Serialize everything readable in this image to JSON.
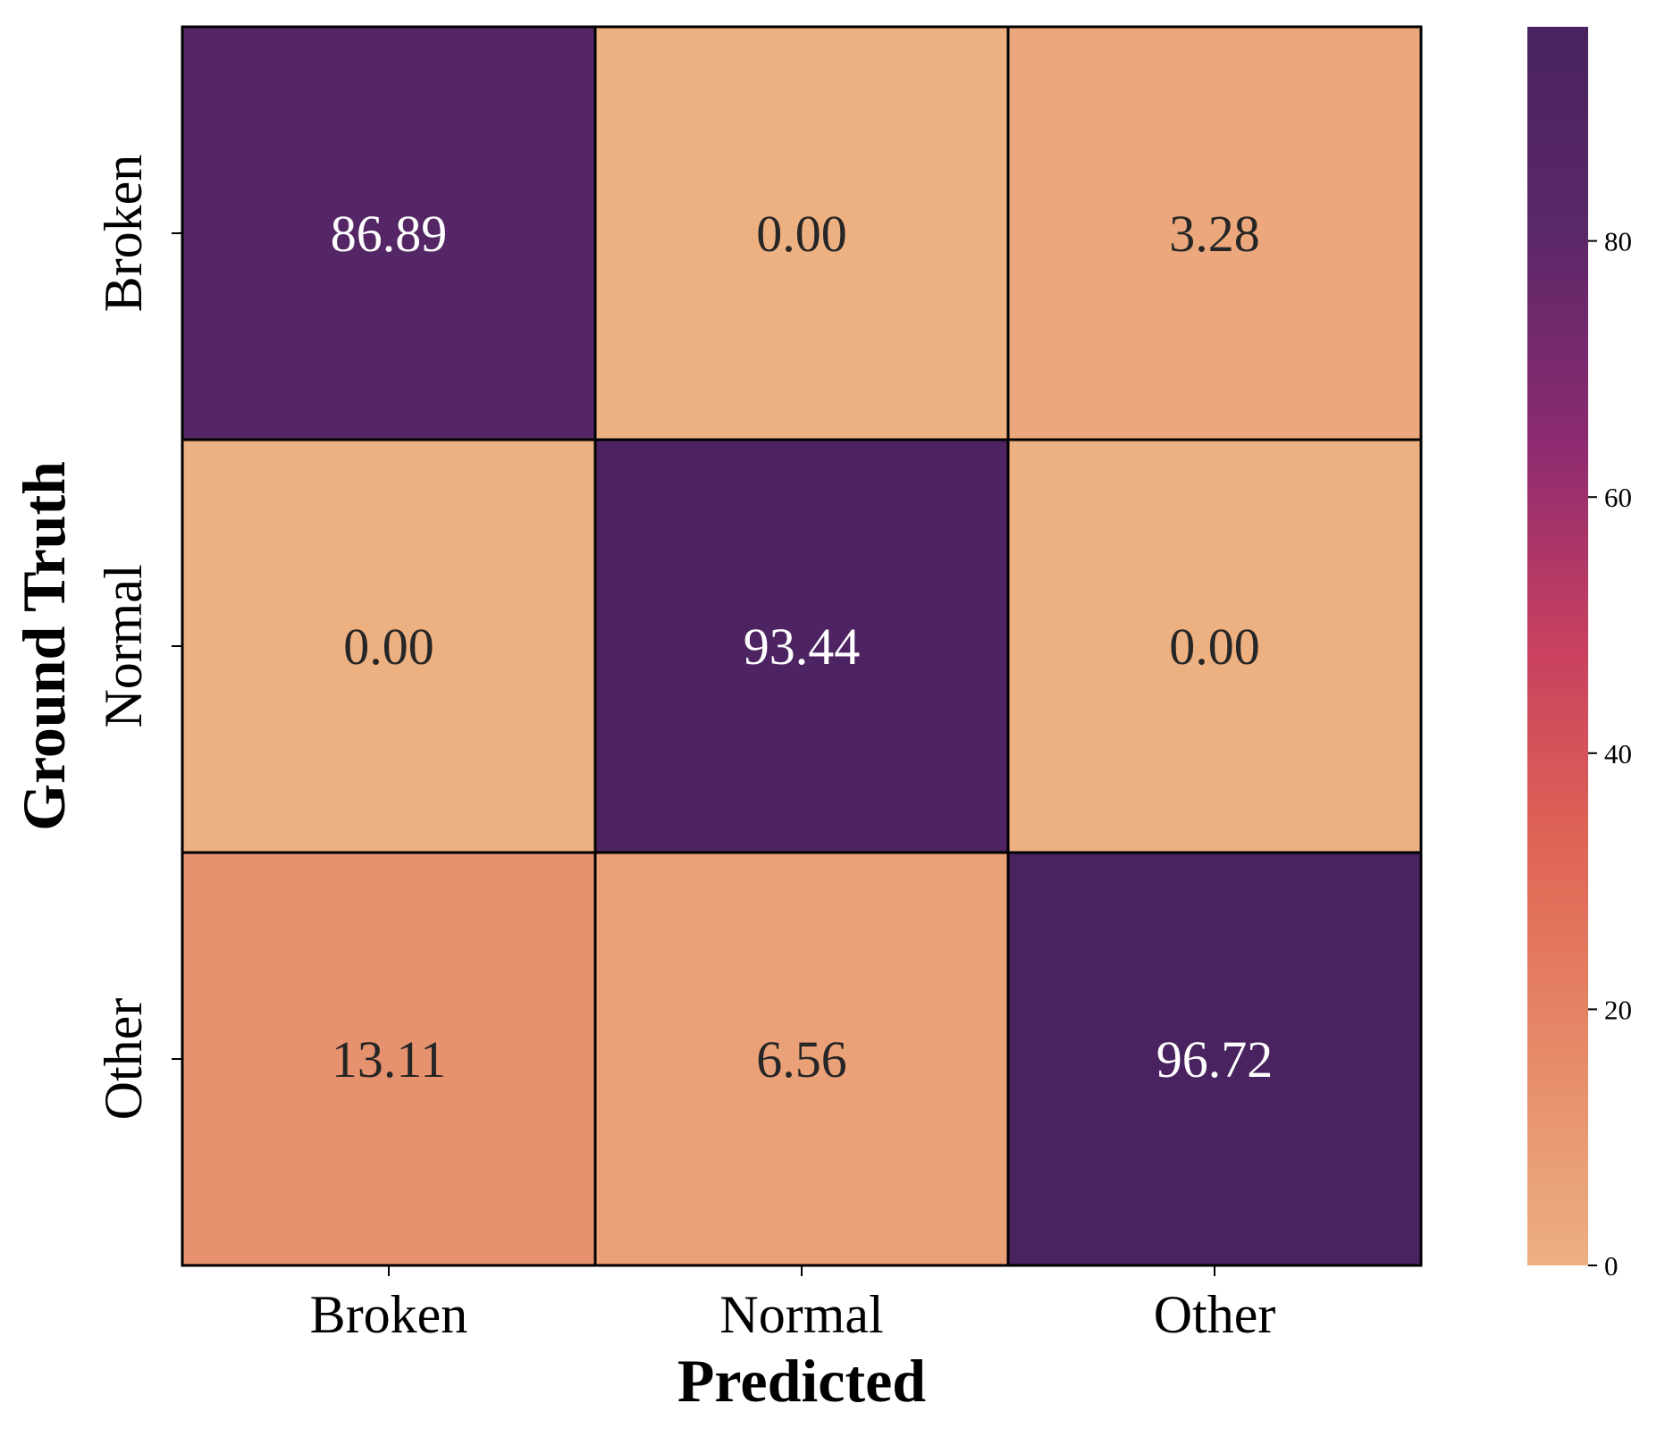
{
  "chart_data": {
    "type": "heatmap",
    "xlabel": "Predicted",
    "ylabel": "Ground Truth",
    "x_categories": [
      "Broken",
      "Normal",
      "Other"
    ],
    "y_categories": [
      "Broken",
      "Normal",
      "Other"
    ],
    "values": [
      [
        86.89,
        0.0,
        3.28
      ],
      [
        0.0,
        93.44,
        0.0
      ],
      [
        13.11,
        6.56,
        96.72
      ]
    ],
    "value_labels": [
      [
        "86.89",
        "0.00",
        "3.28"
      ],
      [
        "0.00",
        "93.44",
        "0.00"
      ],
      [
        "13.11",
        "6.56",
        "96.72"
      ]
    ],
    "colorbar": {
      "range": [
        0,
        96.72
      ],
      "ticks": [
        0,
        20,
        40,
        60,
        80
      ],
      "tick_labels": [
        "0",
        "20",
        "40",
        "60",
        "80"
      ],
      "colormap": "flare",
      "colors": [
        "#edb081",
        "#e68b6a",
        "#e06655",
        "#c8405f",
        "#8c2a71",
        "#5b2868",
        "#492260"
      ]
    },
    "grid": false,
    "legend": "colorbar-right"
  }
}
